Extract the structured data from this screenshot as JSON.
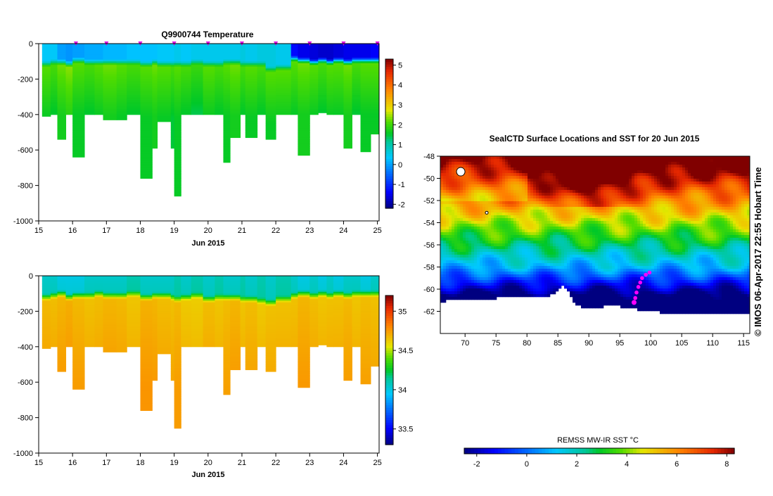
{
  "chart_data": [
    {
      "id": "temperature",
      "type": "heatmap",
      "title": "Q9900744  Temperature",
      "xlabel": "Jun 2015",
      "ylabel": "",
      "xlim": [
        15,
        25.05
      ],
      "ylim": [
        -1000,
        0
      ],
      "x_ticks": [
        "15",
        "16",
        "17",
        "18",
        "19",
        "20",
        "21",
        "22",
        "23",
        "24",
        "25"
      ],
      "y_ticks": [
        "0",
        "-200",
        "-400",
        "-600",
        "-800",
        "-1000"
      ],
      "colorbar": {
        "min": -2.2,
        "max": 5.3,
        "ticks": [
          "-2",
          "-1",
          "0",
          "1",
          "2",
          "3",
          "4",
          "5"
        ]
      },
      "profile_markers_x": [
        16.1,
        17.0,
        18.0,
        19.0,
        20.0,
        21.0,
        22.0,
        23.0,
        24.0,
        25.0
      ],
      "profiles": {
        "x_edges": [
          15.1,
          15.35,
          15.55,
          15.8,
          16.0,
          16.35,
          16.65,
          16.9,
          17.3,
          17.6,
          18.0,
          18.35,
          18.5,
          18.9,
          19.0,
          19.2,
          19.5,
          19.85,
          20.2,
          20.45,
          20.65,
          20.95,
          21.1,
          21.45,
          21.7,
          22.0,
          22.45,
          22.65,
          23.0,
          23.25,
          23.5,
          23.7,
          24.0,
          24.25,
          24.5,
          24.8,
          25.05
        ],
        "max_depth": [
          410,
          400,
          540,
          400,
          640,
          400,
          400,
          430,
          430,
          400,
          760,
          590,
          440,
          590,
          860,
          400,
          400,
          400,
          400,
          670,
          530,
          400,
          530,
          400,
          540,
          400,
          400,
          630,
          400,
          390,
          400,
          400,
          590,
          400,
          610,
          510
        ],
        "surface_temp": [
          0.4,
          0.4,
          0.0,
          -0.1,
          0.0,
          0.1,
          0.1,
          0.2,
          0.2,
          0.3,
          0.3,
          0.3,
          0.4,
          0.4,
          0.5,
          0.4,
          0.5,
          0.5,
          0.5,
          0.5,
          0.5,
          0.6,
          0.5,
          0.6,
          0.6,
          0.5,
          -1.3,
          -1.5,
          -1.6,
          -1.7,
          -1.7,
          -1.6,
          -1.5,
          -1.5,
          -1.5,
          -1.4
        ],
        "mixed_layer_depth": [
          120,
          110,
          110,
          120,
          100,
          110,
          110,
          110,
          110,
          110,
          120,
          110,
          120,
          120,
          120,
          120,
          110,
          120,
          120,
          110,
          110,
          120,
          120,
          120,
          150,
          140,
          90,
          100,
          110,
          100,
          110,
          100,
          110,
          100,
          100,
          100
        ],
        "deep_temp": [
          1.6,
          1.5,
          1.7,
          1.8,
          1.6,
          1.5,
          1.6,
          1.7,
          1.6,
          1.5,
          1.6,
          1.7,
          1.6,
          1.5,
          1.6,
          1.5,
          1.4,
          1.6,
          1.5,
          1.6,
          1.7,
          1.5,
          1.6,
          1.5,
          1.6,
          1.6,
          1.6,
          1.7,
          1.6,
          1.5,
          1.6,
          1.6,
          1.7,
          1.5,
          1.6,
          1.6
        ]
      }
    },
    {
      "id": "salinity",
      "type": "heatmap",
      "title": "",
      "xlabel": "Jun 2015",
      "ylabel": "",
      "xlim": [
        15,
        25.05
      ],
      "ylim": [
        -1000,
        0
      ],
      "x_ticks": [
        "15",
        "16",
        "17",
        "18",
        "19",
        "20",
        "21",
        "22",
        "23",
        "24",
        "25"
      ],
      "y_ticks": [
        "0",
        "-200",
        "-400",
        "-600",
        "-800",
        "-1000"
      ],
      "colorbar": {
        "min": 33.3,
        "max": 35.2,
        "ticks": [
          "33.5",
          "34",
          "34.5",
          "35"
        ]
      },
      "profiles": {
        "surface_value": [
          34.05,
          34.05,
          34.0,
          34.0,
          34.0,
          34.05,
          34.05,
          34.05,
          34.05,
          34.1,
          34.05,
          34.05,
          34.05,
          34.05,
          34.1,
          34.05,
          34.1,
          34.05,
          34.1,
          34.05,
          34.05,
          34.1,
          34.05,
          34.1,
          34.05,
          34.1,
          34.05,
          34.0,
          34.05,
          34.0,
          34.05,
          34.0,
          34.05,
          34.05,
          34.0,
          34.05
        ],
        "thermocline_depth": [
          130,
          120,
          110,
          130,
          120,
          120,
          110,
          120,
          120,
          110,
          130,
          120,
          120,
          130,
          140,
          130,
          120,
          140,
          130,
          130,
          130,
          140,
          140,
          150,
          160,
          140,
          120,
          110,
          120,
          110,
          120,
          110,
          120,
          110,
          110,
          110
        ],
        "deep_value": [
          34.75,
          34.74,
          34.76,
          34.78,
          34.75,
          34.73,
          34.74,
          34.76,
          34.75,
          34.72,
          34.77,
          34.76,
          34.74,
          34.73,
          34.75,
          34.71,
          34.7,
          34.74,
          34.72,
          34.74,
          34.76,
          34.72,
          34.74,
          34.71,
          34.73,
          34.73,
          34.73,
          34.76,
          34.74,
          34.72,
          34.73,
          34.73,
          34.75,
          34.72,
          34.74,
          34.73
        ]
      }
    },
    {
      "id": "sst_map",
      "type": "heatmap",
      "title": "SealCTD Surface Locations and SST for 20 Jun 2015",
      "xlabel": "",
      "ylabel": "",
      "xlim": [
        66,
        116
      ],
      "ylim": [
        -64,
        -48
      ],
      "x_ticks": [
        "70",
        "75",
        "80",
        "85",
        "90",
        "95",
        "100",
        "105",
        "110",
        "115"
      ],
      "y_ticks": [
        "-48",
        "-50",
        "-52",
        "-54",
        "-56",
        "-58",
        "-60",
        "-62"
      ],
      "colorbar": {
        "label": "REMSS MW-IR SST °C",
        "min": -2.5,
        "max": 8.3,
        "ticks": [
          "-2",
          "0",
          "2",
          "4",
          "6",
          "8"
        ]
      },
      "track_points": [
        [
          97.3,
          -61.2
        ],
        [
          97.5,
          -60.8
        ],
        [
          97.7,
          -60.3
        ],
        [
          98.0,
          -59.8
        ],
        [
          98.3,
          -59.4
        ],
        [
          98.6,
          -59.0
        ],
        [
          99.2,
          -58.7
        ],
        [
          99.8,
          -58.5
        ]
      ]
    }
  ],
  "page": {
    "credit": "©  IMOS 06-Apr-2017 22:55 Hobart Time"
  }
}
